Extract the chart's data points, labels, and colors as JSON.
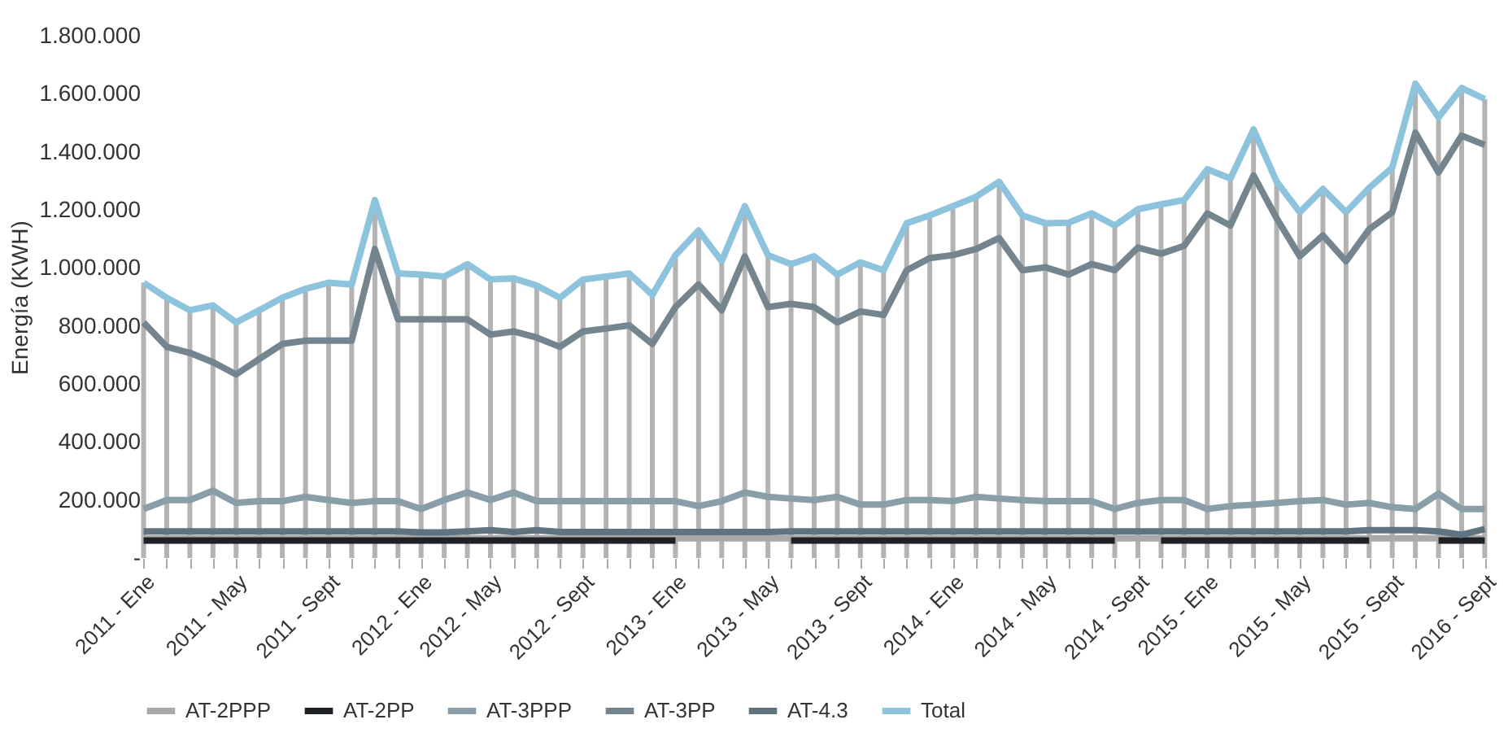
{
  "chart_data": {
    "type": "line",
    "ylabel": "Energía (KWH)",
    "categories": [
      "2011 - Ene",
      null,
      null,
      null,
      "2011 - May",
      null,
      null,
      null,
      "2011 - Sept",
      null,
      null,
      null,
      "2012 - Ene",
      null,
      null,
      "2012 - May",
      null,
      null,
      null,
      "2012 - Sept",
      null,
      null,
      null,
      "2013 - Ene",
      null,
      null,
      null,
      "2013 - May",
      null,
      null,
      null,
      "2013 - Sept",
      null,
      null,
      null,
      "2014 - Ene",
      null,
      null,
      null,
      "2014 - May",
      null,
      null,
      null,
      "2014 - Sept",
      null,
      null,
      "2015 - Ene",
      null,
      null,
      null,
      "2015 - May",
      null,
      null,
      null,
      "2015 - Sept",
      null,
      null,
      null,
      "2016 - Sept"
    ],
    "series": [
      {
        "name": "AT-2PPP",
        "color": "#a9a9a9",
        "values": [
          68000,
          68000,
          68000,
          68000,
          68000,
          68000,
          68000,
          68000,
          68000,
          68000,
          68000,
          68000,
          68000,
          68000,
          68000,
          68000,
          68000,
          68000,
          68000,
          68000,
          68000,
          68000,
          68000,
          68000,
          68000,
          68000,
          68000,
          68000,
          68000,
          68000,
          68000,
          68000,
          68000,
          68000,
          68000,
          68000,
          68000,
          68000,
          68000,
          68000,
          68000,
          68000,
          68000,
          68000,
          68000,
          68000,
          68000,
          68000,
          68000,
          68000,
          68000,
          68000,
          68000,
          68000,
          68000,
          68000,
          68000,
          68000,
          68000
        ]
      },
      {
        "name": "AT-2PP",
        "color": "#1e2226",
        "values": [
          60000,
          60000,
          60000,
          60000,
          60000,
          60000,
          60000,
          60000,
          60000,
          60000,
          60000,
          60000,
          60000,
          60000,
          60000,
          60000,
          60000,
          60000,
          60000,
          60000,
          60000,
          60000,
          60000,
          60000,
          null,
          null,
          null,
          null,
          60000,
          60000,
          60000,
          60000,
          60000,
          60000,
          60000,
          60000,
          60000,
          60000,
          60000,
          60000,
          60000,
          60000,
          60000,
          null,
          60000,
          60000,
          60000,
          60000,
          60000,
          60000,
          60000,
          60000,
          60000,
          60000,
          null,
          null,
          60000,
          60000,
          60000
        ]
      },
      {
        "name": "AT-3PPP",
        "color": "#8a9ea9",
        "values": [
          169000,
          200000,
          200000,
          232000,
          190000,
          196000,
          196000,
          211000,
          200000,
          190000,
          196000,
          196000,
          169000,
          200000,
          226000,
          200000,
          226000,
          196000,
          196000,
          196000,
          196000,
          196000,
          196000,
          196000,
          179000,
          196000,
          226000,
          211000,
          205000,
          200000,
          211000,
          184000,
          184000,
          200000,
          200000,
          196000,
          211000,
          205000,
          200000,
          196000,
          196000,
          196000,
          169000,
          190000,
          200000,
          200000,
          169000,
          179000,
          184000,
          190000,
          196000,
          200000,
          184000,
          190000,
          175000,
          169000,
          222000,
          169000,
          169000
        ]
      },
      {
        "name": "AT-3PP",
        "color": "#75858f",
        "values": [
          812000,
          728000,
          707000,
          675000,
          633000,
          686000,
          738000,
          749000,
          749000,
          749000,
          1065000,
          823000,
          823000,
          823000,
          823000,
          770000,
          781000,
          760000,
          728000,
          781000,
          791000,
          802000,
          738000,
          865000,
          943000,
          854000,
          1040000,
          865000,
          876000,
          865000,
          812000,
          850000,
          838000,
          992000,
          1034000,
          1044000,
          1065000,
          1103000,
          992000,
          1002000,
          977000,
          1013000,
          992000,
          1070000,
          1049000,
          1076000,
          1188000,
          1146000,
          1319000,
          1171000,
          1040000,
          1112000,
          1023000,
          1133000,
          1192000,
          1466000,
          1329000,
          1456000,
          1424000
        ]
      },
      {
        "name": "AT-4.3",
        "color": "#5f7480",
        "values": [
          92000,
          92000,
          92000,
          92000,
          92000,
          92000,
          92000,
          92000,
          92000,
          92000,
          92000,
          92000,
          88000,
          88000,
          92000,
          96000,
          90000,
          96000,
          90000,
          90000,
          90000,
          90000,
          90000,
          90000,
          90000,
          90000,
          90000,
          90000,
          92000,
          92000,
          92000,
          92000,
          92000,
          92000,
          92000,
          92000,
          92000,
          92000,
          92000,
          92000,
          92000,
          92000,
          92000,
          92000,
          92000,
          92000,
          92000,
          92000,
          92000,
          92000,
          92000,
          92000,
          92000,
          96000,
          96000,
          96000,
          92000,
          80000,
          100000
        ]
      },
      {
        "name": "Total",
        "color": "#8ec3dd",
        "values": [
          949000,
          897000,
          854000,
          871000,
          812000,
          854000,
          897000,
          928000,
          949000,
          943000,
          1234000,
          981000,
          977000,
          970000,
          1013000,
          960000,
          964000,
          939000,
          897000,
          960000,
          970000,
          981000,
          907000,
          1044000,
          1129000,
          1023000,
          1213000,
          1044000,
          1013000,
          1040000,
          977000,
          1019000,
          992000,
          1154000,
          1181000,
          1213000,
          1245000,
          1297000,
          1181000,
          1154000,
          1156000,
          1188000,
          1146000,
          1202000,
          1219000,
          1234000,
          1340000,
          1308000,
          1477000,
          1297000,
          1192000,
          1272000,
          1192000,
          1276000,
          1346000,
          1635000,
          1519000,
          1620000,
          1582000
        ],
        "errors": [
          [
            0,
            949000
          ],
          [
            0,
            897000
          ],
          [
            0,
            854000
          ],
          [
            0,
            871000
          ],
          [
            0,
            812000
          ],
          [
            0,
            854000
          ],
          [
            0,
            897000
          ],
          [
            0,
            928000
          ],
          [
            0,
            949000
          ],
          [
            0,
            943000
          ],
          [
            0,
            1234000
          ],
          [
            0,
            981000
          ],
          [
            0,
            977000
          ],
          [
            0,
            970000
          ],
          [
            0,
            1013000
          ],
          [
            0,
            960000
          ],
          [
            0,
            964000
          ],
          [
            0,
            939000
          ],
          [
            0,
            897000
          ],
          [
            0,
            960000
          ],
          [
            0,
            970000
          ],
          [
            0,
            981000
          ],
          [
            0,
            907000
          ],
          [
            0,
            1044000
          ],
          [
            0,
            1129000
          ],
          [
            0,
            1023000
          ],
          [
            0,
            1213000
          ],
          [
            0,
            1044000
          ],
          [
            0,
            1013000
          ],
          [
            0,
            1040000
          ],
          [
            0,
            977000
          ],
          [
            0,
            1019000
          ],
          [
            0,
            992000
          ],
          [
            0,
            1154000
          ],
          [
            0,
            1181000
          ],
          [
            0,
            1213000
          ],
          [
            0,
            1245000
          ],
          [
            0,
            1297000
          ],
          [
            0,
            1181000
          ],
          [
            0,
            1154000
          ],
          [
            0,
            1156000
          ],
          [
            0,
            1188000
          ],
          [
            0,
            1146000
          ],
          [
            0,
            1202000
          ],
          [
            0,
            1219000
          ],
          [
            0,
            1234000
          ],
          [
            0,
            1340000
          ],
          [
            0,
            1308000
          ],
          [
            0,
            1477000
          ],
          [
            0,
            1297000
          ],
          [
            0,
            1192000
          ],
          [
            0,
            1272000
          ],
          [
            0,
            1192000
          ],
          [
            0,
            1276000
          ],
          [
            0,
            1346000
          ],
          [
            0,
            1635000
          ],
          [
            0,
            1519000
          ],
          [
            0,
            1620000
          ],
          [
            0,
            1582000
          ]
        ]
      }
    ],
    "ylim": [
      0,
      1800000
    ],
    "yticks": [
      {
        "value": 0,
        "label": "-"
      },
      {
        "value": 200000,
        "label": "200.000"
      },
      {
        "value": 400000,
        "label": "400.000"
      },
      {
        "value": 600000,
        "label": "600.000"
      },
      {
        "value": 800000,
        "label": "800.000"
      },
      {
        "value": 1000000,
        "label": "1.000.000"
      },
      {
        "value": 1200000,
        "label": "1.200.000"
      },
      {
        "value": 1400000,
        "label": "1.400.000"
      },
      {
        "value": 1600000,
        "label": "1.600.000"
      },
      {
        "value": 1800000,
        "label": "1.800.000"
      }
    ],
    "grid": false,
    "legend": "bottom"
  }
}
